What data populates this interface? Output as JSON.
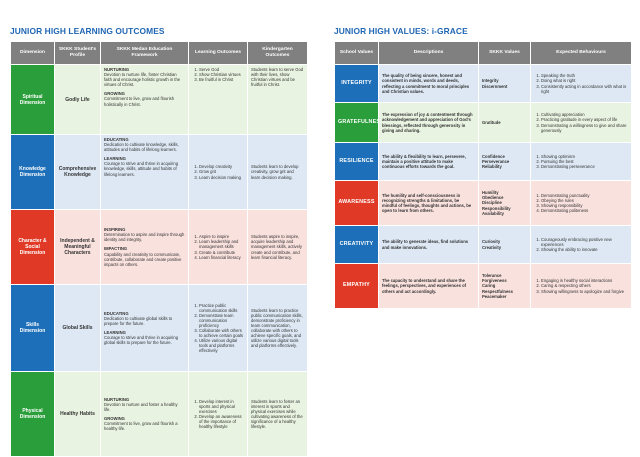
{
  "left": {
    "title": "JUNIOR HIGH LEARNING OUTCOMES",
    "headers": {
      "dimension": "Dimension",
      "profile": "SKKK Student's Profile",
      "framework": "SKKK Medan Education Framework",
      "outcomes": "Learning Outcomes",
      "kindergarten": "Kindergarten Outcomes"
    },
    "rows": [
      {
        "dimension": "Spiritual Dimension",
        "profile": "Godly Life",
        "fw1_head": "NURTURING",
        "fw1_text": "Devotion to nurture life, foster Christian faith and encourage holistic growth in the virtues of Christ.",
        "fw2_head": "GROWING",
        "fw2_text": "Commitment to live, grow and flourish holistically in Christ.",
        "outcomes": [
          "Serve God",
          "Show Christian virtues",
          "Be fruitful in Christ"
        ],
        "kindergarten": "Students learn to serve God with their lives, show Christian virtues and be fruitful in Christ."
      },
      {
        "dimension": "Knowledge Dimension",
        "profile": "Comprehensive Knowledge",
        "fw1_head": "EDUCATING",
        "fw1_text": "Dedication to cultivate knowledge, skills, attitudes and habits of lifelong learners.",
        "fw2_head": "LEARNING",
        "fw2_text": "Courage to strive and thrive in acquiring knowledge, skills, attitude and habits of lifelong learners.",
        "outcomes": [
          "Develop creativity",
          "Grow grit",
          "Learn decision making"
        ],
        "kindergarten": "Students learn to develop creativity, grow grit and learn decision making."
      },
      {
        "dimension": "Character & Social Dimension",
        "profile": "Independent & Meaningful Characters",
        "fw1_head": "INSPIRING",
        "fw1_text": "Determination to aspire and inspire through identity and integrity.",
        "fw2_head": "IMPACTING",
        "fw2_text": "Capability and creativity to communicate, contribute, collaborate and create positive impacts on others.",
        "outcomes": [
          "Aspire to inspire",
          "Learn leadership and management skills",
          "Create & contribute",
          "Learn financial literacy"
        ],
        "kindergarten": "Students aspire to inspire, acquire leadership and management skills, actively create and contribute, and learn financial literacy."
      },
      {
        "dimension": "Skills Dimension",
        "profile": "Global Skills",
        "fw1_head": "EDUCATING",
        "fw1_text": "Dedication to cultivate global skills to prepare for the future.",
        "fw2_head": "LEARNING",
        "fw2_text": "Courage to strive and thrive in acquiring global skills to prepare for the future.",
        "outcomes": [
          "Practice public communication skills",
          "Demonstrate team communication proficiency",
          "Collaborate with others to achieve certain goals",
          "Utilize various digital tools and platforms effectively"
        ],
        "kindergarten": "Students learn to practice public communication skills, demonstrate proficiency in team communication, collaborate with others to achieve specific goals, and utilize various digital tools and platforms effectively."
      },
      {
        "dimension": "Physical Dimension",
        "profile": "Healthy Habits",
        "fw1_head": "NURTURING",
        "fw1_text": "Devotion to nurture and foster a healthy life.",
        "fw2_head": "GROWING",
        "fw2_text": "Commitment to live, grow and flourish a healthy life.",
        "outcomes": [
          "Develop interest in sports and physical exercises",
          "Develop an awareness of the importance of healthy lifestyle"
        ],
        "kindergarten": "Students learn to foster an interest in sports and physical exercises while cultivating awareness of the significance of a healthy lifestyle."
      }
    ]
  },
  "right": {
    "title": "JUNIOR HIGH VALUES: i-GRACE",
    "headers": {
      "school_values": "School Values",
      "descriptions": "Descriptions",
      "skkk_values": "SKKK Values",
      "behaviours": "Expected Behaviours"
    },
    "rows": [
      {
        "name": "Integrity",
        "description": "The quality of being sincere, honest and consistent in minds, words and deeds, reflecting a commitment to moral principles and Christian values.",
        "values": [
          "Integrity",
          "Discernment"
        ],
        "behaviours": [
          "Speaking the truth",
          "Doing what is right",
          "Consistently acting in accordance with what is right"
        ]
      },
      {
        "name": "Gratefulness",
        "description": "The expression of joy & contentment through acknowledgement and appreciation of God's blessings, reflected through generosity in giving and sharing.",
        "values": [
          "Gratitude"
        ],
        "behaviours": [
          "Cultivating appreciation",
          "Practicing gratitude in every aspect of life",
          "Demonstrating a willingness to give and share generously"
        ]
      },
      {
        "name": "Resilience",
        "description": "The ability & flexibility to learn, persevere, maintain a positive attitude to make continuous efforts towards the goal.",
        "values": [
          "Confidence",
          "Perseverance",
          "Reliability"
        ],
        "behaviours": [
          "Showing optimism",
          "Pursuing the best",
          "Demonstrating perseverance"
        ]
      },
      {
        "name": "Awareness",
        "description": "The humility and self-consciousness in recognizing strengths & limitations, be mindful of feelings, thoughts and actions, be open to learn from others.",
        "values": [
          "Humility",
          "Obedience",
          "Discipline",
          "Responsibility",
          "Availability"
        ],
        "behaviours": [
          "Demonstrating punctuality",
          "Obeying the rules",
          "Showing responsibility",
          "Demonstrating politeness"
        ]
      },
      {
        "name": "Creativity",
        "description": "The ability to generate ideas, find solutions and make innovations.",
        "values": [
          "Curiosity",
          "Creativity"
        ],
        "behaviours": [
          "Courageously embracing positive new experiences",
          "Showing the ability to innovate"
        ]
      },
      {
        "name": "Empathy",
        "description": "The capacity to understand and share the feelings, perspectives, and experiences of others and act accordingly.",
        "values": [
          "Tolerance",
          "Forgiveness",
          "Caring",
          "Respectfulness",
          "Peacemaker"
        ],
        "behaviours": [
          "Engaging in healthy social interactions",
          "Caring & respecting others",
          "Showing willingness to apologize and forgive"
        ]
      }
    ]
  },
  "colors": {
    "title_blue": "#1f66b3",
    "header_gray": "#808080",
    "spiritual": "#2a9e3a",
    "knowledge": "#1c6fb8",
    "character": "#e03a26",
    "skills": "#1c6fb8",
    "physical": "#2a9e3a"
  }
}
